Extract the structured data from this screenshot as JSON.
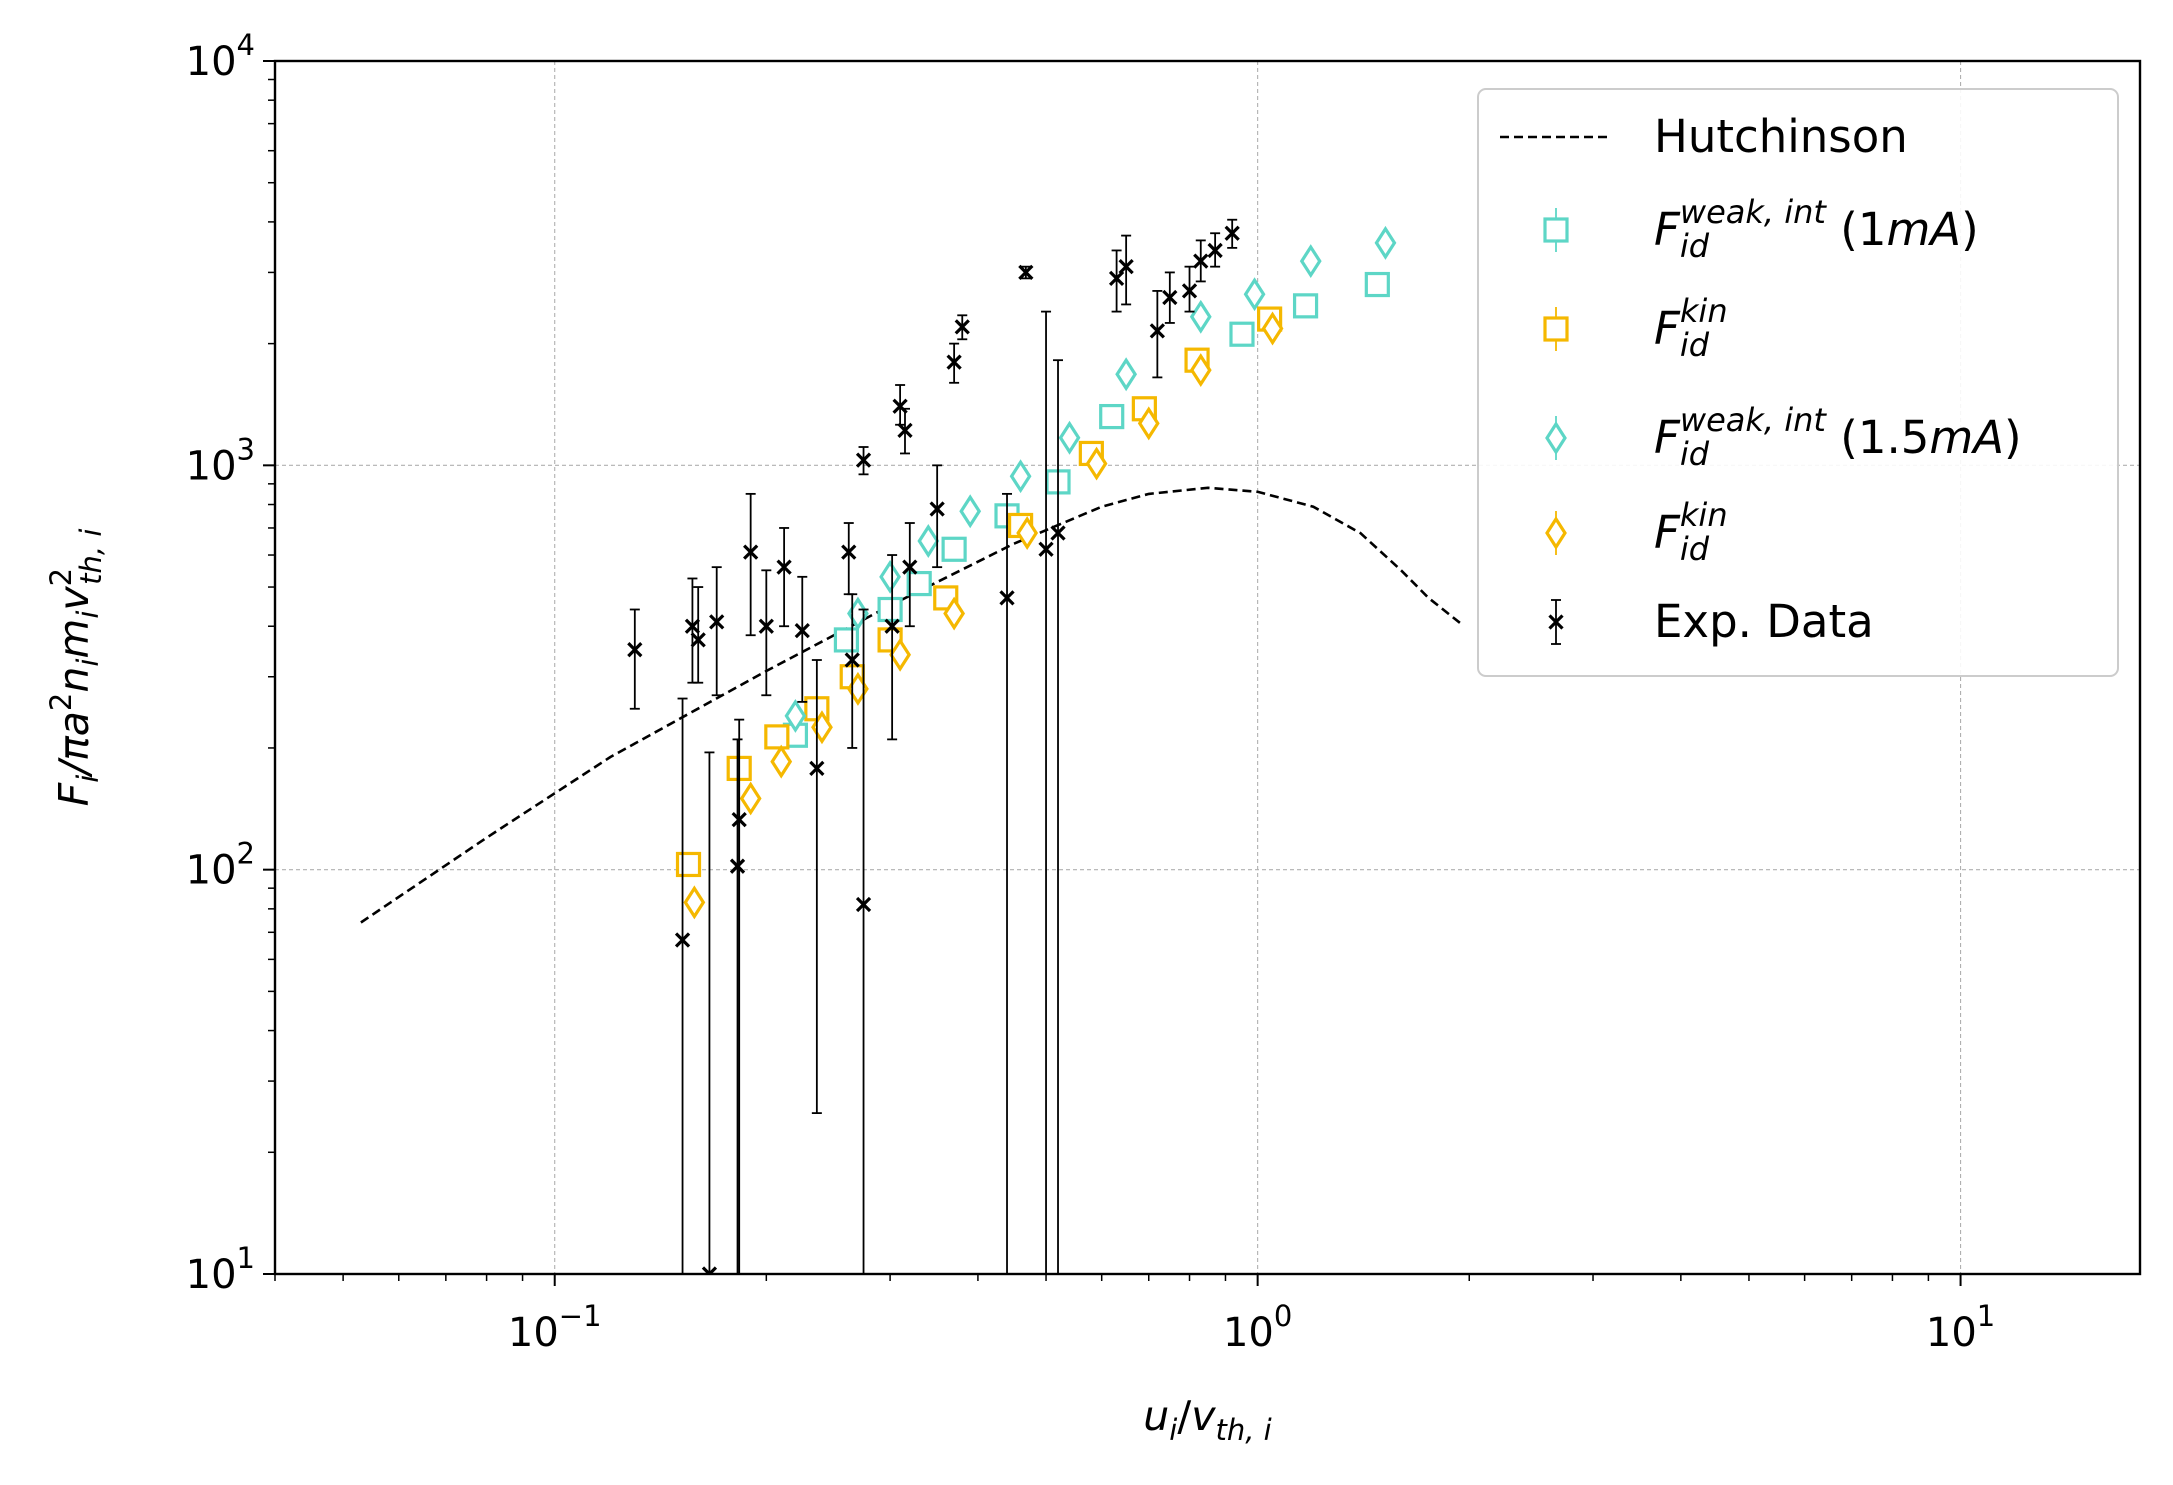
{
  "chart_data": {
    "type": "scatter",
    "x_scale": "log",
    "y_scale": "log",
    "xlim": [
      0.04,
      18
    ],
    "ylim": [
      10,
      10000
    ],
    "grid": true,
    "legend_position": "top-right",
    "xlabel": {
      "base": "u",
      "base_sub": "i",
      "slash": "/",
      "v": "v",
      "v_sub": "th, i"
    },
    "ylabel": {
      "F": "F",
      "F_sub": "i",
      "mid": "/πa",
      "sup2": "2",
      "n": "n",
      "n_sub": "i",
      "m": "m",
      "m_sub": "i",
      "v": "v",
      "v_sub": "th, i",
      "v_sup": "2"
    },
    "x_ticks": [
      {
        "value": 0.1,
        "base": "10",
        "exp": "−1"
      },
      {
        "value": 1,
        "base": "10",
        "exp": "0"
      },
      {
        "value": 10,
        "base": "10",
        "exp": "1"
      }
    ],
    "y_ticks": [
      {
        "value": 10,
        "base": "10",
        "exp": "1"
      },
      {
        "value": 100,
        "base": "10",
        "exp": "2"
      },
      {
        "value": 1000,
        "base": "10",
        "exp": "3"
      },
      {
        "value": 10000,
        "base": "10",
        "exp": "4"
      }
    ],
    "series": [
      {
        "name": "Hutchinson",
        "style": "dashed-line",
        "color": "#000000",
        "points": [
          [
            0.053,
            74
          ],
          [
            0.08,
            120
          ],
          [
            0.12,
            190
          ],
          [
            0.2,
            310
          ],
          [
            0.3,
            450
          ],
          [
            0.45,
            640
          ],
          [
            0.6,
            790
          ],
          [
            0.7,
            850
          ],
          [
            0.85,
            880
          ],
          [
            1.0,
            860
          ],
          [
            1.2,
            790
          ],
          [
            1.4,
            680
          ],
          [
            1.6,
            550
          ],
          [
            1.75,
            470
          ],
          [
            1.95,
            405
          ]
        ]
      },
      {
        "name_parts": {
          "F": "F",
          "sub": "id",
          "sup": "weak, int",
          "suffix_pre": " (1",
          "suffix_em": "mA",
          "suffix_post": ")"
        },
        "marker": "square",
        "color": "#5dd6c6",
        "points": [
          [
            0.26,
            370
          ],
          [
            0.3,
            440
          ],
          [
            0.33,
            510
          ],
          [
            0.37,
            620
          ],
          [
            0.44,
            750
          ],
          [
            0.52,
            910
          ],
          [
            0.62,
            1320
          ],
          [
            0.95,
            2110
          ],
          [
            1.17,
            2480
          ],
          [
            1.48,
            2800
          ],
          [
            0.22,
            215
          ]
        ]
      },
      {
        "name_parts": {
          "F": "F",
          "sub": "id",
          "sup": "kin"
        },
        "marker": "square",
        "color": "#f5b800",
        "points": [
          [
            0.155,
            103
          ],
          [
            0.183,
            178
          ],
          [
            0.207,
            213
          ],
          [
            0.236,
            250
          ],
          [
            0.265,
            300
          ],
          [
            0.3,
            370
          ],
          [
            0.36,
            470
          ],
          [
            0.46,
            710
          ],
          [
            0.58,
            1070
          ],
          [
            0.69,
            1380
          ],
          [
            0.82,
            1820
          ],
          [
            1.04,
            2300
          ]
        ]
      },
      {
        "name_parts": {
          "F": "F",
          "sub": "id",
          "sup": "weak, int",
          "suffix_pre": " (1.5",
          "suffix_em": "mA",
          "suffix_post": ")"
        },
        "marker": "diamond",
        "color": "#5dd6c6",
        "points": [
          [
            0.22,
            240
          ],
          [
            0.27,
            430
          ],
          [
            0.3,
            530
          ],
          [
            0.34,
            650
          ],
          [
            0.39,
            770
          ],
          [
            0.46,
            940
          ],
          [
            0.54,
            1170
          ],
          [
            0.65,
            1680
          ],
          [
            0.83,
            2330
          ],
          [
            0.99,
            2650
          ],
          [
            1.19,
            3200
          ],
          [
            1.52,
            3550
          ]
        ]
      },
      {
        "name_parts": {
          "F": "F",
          "sub": "id",
          "sup": "kin"
        },
        "marker": "diamond",
        "color": "#f5b800",
        "points": [
          [
            0.158,
            83
          ],
          [
            0.19,
            150
          ],
          [
            0.21,
            185
          ],
          [
            0.24,
            225
          ],
          [
            0.27,
            280
          ],
          [
            0.31,
            340
          ],
          [
            0.37,
            430
          ],
          [
            0.47,
            680
          ],
          [
            0.59,
            1010
          ],
          [
            0.7,
            1270
          ],
          [
            0.83,
            1720
          ],
          [
            1.05,
            2180
          ]
        ]
      },
      {
        "name": "Exp. Data",
        "marker": "x",
        "color": "#000000",
        "points": [
          [
            0.13,
            350,
            250,
            440
          ],
          [
            0.152,
            67,
            10,
            265
          ],
          [
            0.157,
            400,
            290,
            525
          ],
          [
            0.16,
            370,
            290,
            500
          ],
          [
            0.166,
            10,
            10,
            195
          ],
          [
            0.17,
            410,
            270,
            560
          ],
          [
            0.182,
            102,
            10,
            210
          ],
          [
            0.183,
            133,
            10,
            235
          ],
          [
            0.19,
            610,
            380,
            850
          ],
          [
            0.2,
            400,
            270,
            550
          ],
          [
            0.212,
            560,
            400,
            700
          ],
          [
            0.225,
            390,
            260,
            530
          ],
          [
            0.236,
            178,
            25,
            330
          ],
          [
            0.262,
            610,
            480,
            720
          ],
          [
            0.265,
            330,
            200,
            480
          ],
          [
            0.275,
            82,
            10,
            440
          ],
          [
            0.275,
            1030,
            950,
            1110
          ],
          [
            0.302,
            400,
            210,
            600
          ],
          [
            0.31,
            1400,
            1260,
            1580
          ],
          [
            0.315,
            1220,
            1070,
            1380
          ],
          [
            0.32,
            560,
            400,
            720
          ],
          [
            0.35,
            780,
            560,
            1000
          ],
          [
            0.37,
            1800,
            1600,
            2000
          ],
          [
            0.38,
            2200,
            2050,
            2350
          ],
          [
            0.44,
            470,
            10,
            850
          ],
          [
            0.468,
            3000,
            2900,
            3100
          ],
          [
            0.5,
            620,
            10,
            2400
          ],
          [
            0.52,
            680,
            10,
            1820
          ],
          [
            0.63,
            2900,
            2400,
            3400
          ],
          [
            0.65,
            3100,
            2500,
            3700
          ],
          [
            0.72,
            2150,
            1650,
            2700
          ],
          [
            0.75,
            2600,
            2250,
            3000
          ],
          [
            0.8,
            2700,
            2400,
            3100
          ],
          [
            0.83,
            3200,
            2850,
            3600
          ],
          [
            0.87,
            3400,
            3100,
            3750
          ],
          [
            0.92,
            3750,
            3450,
            4050
          ]
        ]
      }
    ]
  }
}
